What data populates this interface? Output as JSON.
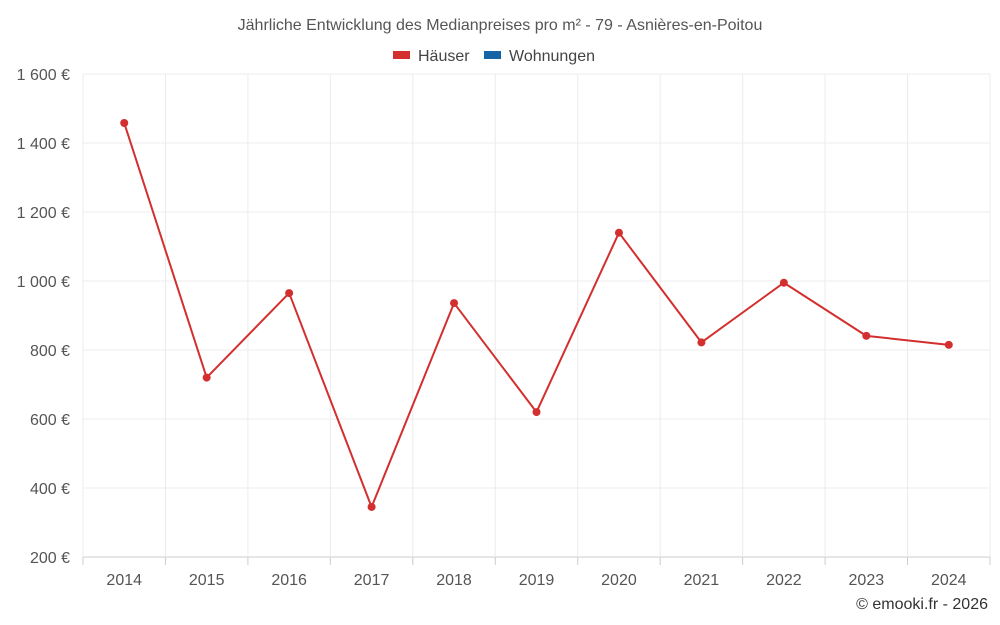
{
  "chart_data": {
    "type": "line",
    "title": "Jährliche Entwicklung des Medianpreises pro m² - 79 - Asnières-en-Poitou",
    "categories": [
      "2014",
      "2015",
      "2016",
      "2017",
      "2018",
      "2019",
      "2020",
      "2021",
      "2022",
      "2023",
      "2024"
    ],
    "series": [
      {
        "name": "Häuser",
        "color": "#d32f2f",
        "values": [
          1458,
          720,
          965,
          345,
          936,
          620,
          1140,
          822,
          995,
          841,
          815
        ]
      },
      {
        "name": "Wohnungen",
        "color": "#1565a6",
        "values": [
          null,
          null,
          null,
          null,
          null,
          null,
          null,
          null,
          null,
          null,
          null
        ]
      }
    ],
    "ylim": [
      200,
      1600
    ],
    "yticks": [
      200,
      400,
      600,
      800,
      1000,
      1200,
      1400,
      1600
    ],
    "ytick_labels": [
      "200 €",
      "400 €",
      "600 €",
      "800 €",
      "1 000 €",
      "1 200 €",
      "1 400 €",
      "1 600 €"
    ],
    "grid": true,
    "legend_position": "top-center"
  },
  "credit": "© emooki.fr - 2026"
}
